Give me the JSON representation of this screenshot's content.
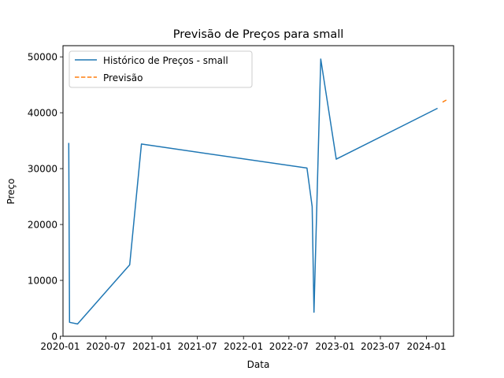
{
  "chart_data": {
    "type": "line",
    "title": "Previsão de Preços para small",
    "xlabel": "Data",
    "ylabel": "Preço",
    "xlim": [
      "2020-01-12",
      "2024-04-18"
    ],
    "ylim": [
      0,
      52000
    ],
    "grid": false,
    "legend_position": "top-left",
    "x_ticks": [
      "2020-01-01",
      "2020-07-01",
      "2021-01-01",
      "2021-07-01",
      "2022-01-01",
      "2022-07-01",
      "2023-01-01",
      "2023-07-01",
      "2024-01-01"
    ],
    "x_tick_labels": [
      "2020-01",
      "2020-07",
      "2021-01",
      "2021-07",
      "2022-01",
      "2022-07",
      "2023-01",
      "2023-07",
      "2024-01"
    ],
    "y_ticks": [
      0,
      10000,
      20000,
      30000,
      40000,
      50000
    ],
    "y_tick_labels": [
      "0",
      "10000",
      "20000",
      "30000",
      "40000",
      "50000"
    ],
    "series": [
      {
        "name": "Histórico de Preços - small",
        "color": "#1f77b4",
        "style": "solid",
        "points": [
          {
            "x": "2020-02-04",
            "y": 34600
          },
          {
            "x": "2020-02-07",
            "y": 2500
          },
          {
            "x": "2020-03-10",
            "y": 2200
          },
          {
            "x": "2020-10-04",
            "y": 12800
          },
          {
            "x": "2020-11-20",
            "y": 34400
          },
          {
            "x": "2022-09-11",
            "y": 30100
          },
          {
            "x": "2022-10-02",
            "y": 23200
          },
          {
            "x": "2022-10-09",
            "y": 4300
          },
          {
            "x": "2022-11-05",
            "y": 49600
          },
          {
            "x": "2023-01-06",
            "y": 31700
          },
          {
            "x": "2024-02-14",
            "y": 40800
          }
        ]
      },
      {
        "name": "Previsão",
        "color": "#ff7f0e",
        "style": "dashed",
        "points": [
          {
            "x": "2024-03-05",
            "y": 41900
          },
          {
            "x": "2024-03-25",
            "y": 42400
          }
        ]
      }
    ]
  }
}
